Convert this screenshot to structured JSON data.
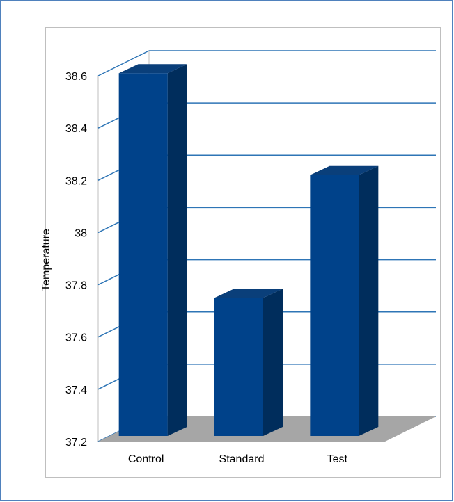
{
  "chart_data": {
    "type": "bar",
    "categories": [
      "Control",
      "Standard",
      "Test"
    ],
    "values": [
      38.61,
      37.75,
      38.22
    ],
    "title": "",
    "xlabel": "",
    "ylabel": "Temperature",
    "ylim": [
      37.2,
      38.6
    ],
    "yticks": [
      "37.2",
      "37.4",
      "37.6",
      "37.8",
      "38",
      "38.2",
      "38.4",
      "38.6"
    ],
    "grid": true,
    "legend": "none",
    "bar_color": "#00428a",
    "bar_side_color": "#002d5c",
    "bar_top_color": "#0a3f7a",
    "floor_color": "#a6a6a6",
    "grid_color": "#2e75b6"
  }
}
